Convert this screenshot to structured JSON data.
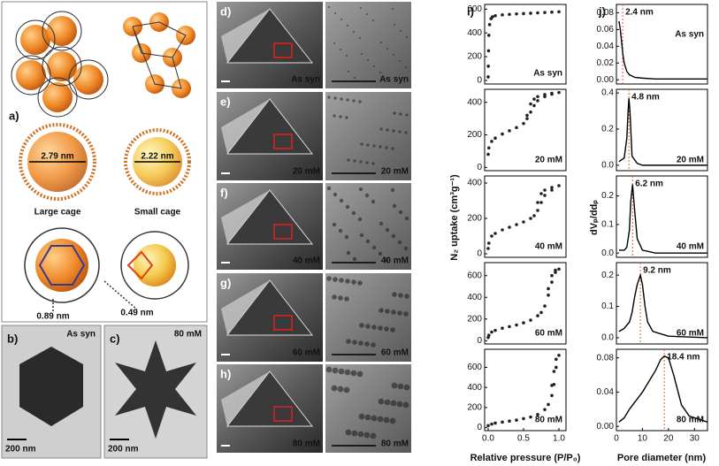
{
  "panel_a": {
    "label": "a)",
    "large_diameter": "2.79 nm",
    "small_diameter": "2.22 nm",
    "large_caption": "Large cage",
    "small_caption": "Small cage",
    "window_large": "0.89 nm",
    "window_small": "0.49 nm"
  },
  "panel_b": {
    "label": "b)",
    "sample": "As syn",
    "scale": "200 nm"
  },
  "panel_c": {
    "label": "c)",
    "sample": "80 mM",
    "scale": "200 nm"
  },
  "micrographs": [
    {
      "label": "d)",
      "sample": "As syn"
    },
    {
      "label": "e)",
      "sample": "20 mM"
    },
    {
      "label": "f)",
      "sample": "40 mM"
    },
    {
      "label": "g)",
      "sample": "60 mM"
    },
    {
      "label": "h)",
      "sample": "80 mM"
    }
  ],
  "panel_i": {
    "label": "i)",
    "xlabel": "Relative pressure (P/P₀)",
    "ylabel": "N₂ uptake (cm³g⁻¹)"
  },
  "panel_j": {
    "label": "j)",
    "xlabel": "Pore diameter (nm)",
    "ylabel": "dVₚ/ddₚ"
  },
  "chart_data": [
    {
      "type": "scatter",
      "annotation": "As syn",
      "color": "#222222",
      "xlim": [
        -0.05,
        1.1
      ],
      "ylim": [
        -30,
        640
      ],
      "yticks": [
        0,
        200,
        400,
        600
      ],
      "x": [
        0,
        0.002,
        0.005,
        0.01,
        0.02,
        0.04,
        0.06,
        0.1,
        0.2,
        0.3,
        0.4,
        0.5,
        0.6,
        0.7,
        0.8,
        0.9,
        1.0
      ],
      "values": [
        30,
        120,
        250,
        380,
        470,
        520,
        535,
        545,
        552,
        556,
        560,
        563,
        566,
        569,
        572,
        575,
        578
      ]
    },
    {
      "type": "scatter",
      "annotation": "20 mM",
      "color": "#222222",
      "xlim": [
        -0.05,
        1.1
      ],
      "ylim": [
        -20,
        480
      ],
      "yticks": [
        0,
        200,
        400
      ],
      "x": [
        0,
        0.01,
        0.05,
        0.1,
        0.2,
        0.3,
        0.4,
        0.5,
        0.55,
        0.6,
        0.65,
        0.7,
        0.8,
        0.9,
        1.0,
        0.9,
        0.8,
        0.7,
        0.65,
        0.6,
        0.55
      ],
      "values": [
        80,
        120,
        160,
        180,
        205,
        225,
        245,
        270,
        300,
        340,
        380,
        410,
        435,
        450,
        460,
        455,
        448,
        435,
        420,
        390,
        320
      ]
    },
    {
      "type": "scatter",
      "annotation": "40 mM",
      "color": "#222222",
      "xlim": [
        -0.05,
        1.1
      ],
      "ylim": [
        -20,
        440
      ],
      "yticks": [
        0,
        200,
        400
      ],
      "x": [
        0,
        0.01,
        0.05,
        0.1,
        0.2,
        0.3,
        0.4,
        0.5,
        0.6,
        0.65,
        0.7,
        0.75,
        0.8,
        0.9,
        1.0,
        0.9,
        0.8,
        0.75,
        0.7
      ],
      "values": [
        30,
        60,
        100,
        115,
        135,
        150,
        165,
        180,
        200,
        215,
        245,
        290,
        330,
        360,
        385,
        375,
        360,
        340,
        290
      ]
    },
    {
      "type": "scatter",
      "annotation": "60 mM",
      "color": "#222222",
      "xlim": [
        -0.05,
        1.1
      ],
      "ylim": [
        -30,
        720
      ],
      "yticks": [
        0,
        200,
        400,
        600
      ],
      "x": [
        0,
        0.01,
        0.05,
        0.1,
        0.2,
        0.3,
        0.4,
        0.5,
        0.6,
        0.7,
        0.75,
        0.8,
        0.85,
        0.9,
        0.95,
        1.0,
        0.95,
        0.9,
        0.85
      ],
      "values": [
        30,
        50,
        80,
        95,
        115,
        130,
        145,
        165,
        190,
        230,
        260,
        320,
        420,
        540,
        630,
        660,
        650,
        600,
        480
      ]
    },
    {
      "type": "scatter",
      "annotation": "80 mM",
      "color": "#222222",
      "xlim": [
        -0.05,
        1.1
      ],
      "ylim": [
        -30,
        780
      ],
      "yticks": [
        0,
        200,
        400,
        600
      ],
      "xticks": [
        {
          "value": 0,
          "label": "0.0"
        },
        {
          "value": 0.5,
          "label": "0.5"
        },
        {
          "value": 1,
          "label": "1.0"
        }
      ],
      "x": [
        0,
        0.05,
        0.1,
        0.2,
        0.3,
        0.4,
        0.5,
        0.6,
        0.7,
        0.8,
        0.85,
        0.9,
        0.93,
        0.96,
        1.0,
        0.96,
        0.93,
        0.9
      ],
      "values": [
        20,
        35,
        45,
        55,
        65,
        75,
        90,
        105,
        130,
        180,
        230,
        320,
        430,
        600,
        720,
        680,
        560,
        420
      ]
    },
    {
      "type": "line",
      "annotation": "As syn",
      "peak_label": "2.4 nm",
      "peak_x": 2.4,
      "color": "#000000",
      "reference_color": "#e0602a",
      "xlim": [
        0,
        35
      ],
      "ylim": [
        -0.005,
        0.09
      ],
      "yticks": [
        {
          "value": 0,
          "label": "0.00"
        },
        0.02,
        0.04,
        0.06,
        0.08
      ],
      "x": [
        1,
        1.5,
        2,
        2.5,
        3,
        4,
        5,
        7,
        10,
        15,
        20,
        30,
        35
      ],
      "values": [
        0.07,
        0.06,
        0.045,
        0.03,
        0.02,
        0.01,
        0.006,
        0.003,
        0.002,
        0.001,
        0.001,
        0.001,
        0.001
      ]
    },
    {
      "type": "line",
      "annotation": "20 mM",
      "peak_label": "4.8 nm",
      "peak_x": 4.8,
      "color": "#000000",
      "reference_color": "#e0602a",
      "xlim": [
        0,
        35
      ],
      "ylim": [
        -0.03,
        0.42
      ],
      "yticks": [
        {
          "value": 0,
          "label": "0.0"
        },
        0.2,
        0.4
      ],
      "x": [
        1,
        2,
        3,
        4,
        4.5,
        4.8,
        5.2,
        6,
        8,
        10,
        20,
        35
      ],
      "values": [
        0.02,
        0.03,
        0.04,
        0.15,
        0.3,
        0.37,
        0.3,
        0.05,
        0.01,
        0,
        0,
        0
      ]
    },
    {
      "type": "line",
      "annotation": "40 mM",
      "peak_label": "6.2 nm",
      "peak_x": 6.2,
      "color": "#000000",
      "reference_color": "#e0602a",
      "xlim": [
        0,
        35
      ],
      "ylim": [
        -0.015,
        0.27
      ],
      "yticks": [
        {
          "value": 0,
          "label": "0.0"
        },
        0.1,
        0.2
      ],
      "x": [
        1,
        3,
        4,
        5,
        5.5,
        6.2,
        7,
        8,
        10,
        15,
        35
      ],
      "values": [
        0.01,
        0.01,
        0.02,
        0.08,
        0.18,
        0.24,
        0.15,
        0.05,
        0.01,
        0,
        0
      ]
    },
    {
      "type": "line",
      "annotation": "60 mM",
      "peak_label": "9.2 nm",
      "peak_x": 9.2,
      "color": "#000000",
      "reference_color": "#e0602a",
      "xlim": [
        0,
        35
      ],
      "ylim": [
        -0.02,
        0.24
      ],
      "yticks": [
        {
          "value": 0,
          "label": "0.0"
        },
        0.1,
        0.2
      ],
      "x": [
        1,
        3,
        5,
        6,
        7,
        8,
        9.2,
        10,
        11,
        12,
        14,
        20,
        35
      ],
      "values": [
        0.02,
        0.03,
        0.05,
        0.08,
        0.13,
        0.17,
        0.2,
        0.17,
        0.1,
        0.05,
        0.02,
        0.005,
        0
      ]
    },
    {
      "type": "line",
      "annotation": "80 mM",
      "peak_label": "18.4 nm",
      "peak_x": 18.4,
      "color": "#000000",
      "reference_color": "#e0602a",
      "xlim": [
        0,
        35
      ],
      "ylim": [
        -0.005,
        0.09
      ],
      "yticks": [
        {
          "value": 0,
          "label": "0.00"
        },
        0.04,
        0.08
      ],
      "xticks": [
        0,
        10,
        20,
        30
      ],
      "x": [
        1,
        3,
        5,
        8,
        10,
        12,
        15,
        17,
        18.4,
        20,
        22,
        25,
        28,
        30,
        35
      ],
      "values": [
        0.005,
        0.01,
        0.02,
        0.032,
        0.04,
        0.05,
        0.065,
        0.078,
        0.082,
        0.08,
        0.06,
        0.025,
        0.012,
        0.01,
        0.005
      ]
    }
  ]
}
